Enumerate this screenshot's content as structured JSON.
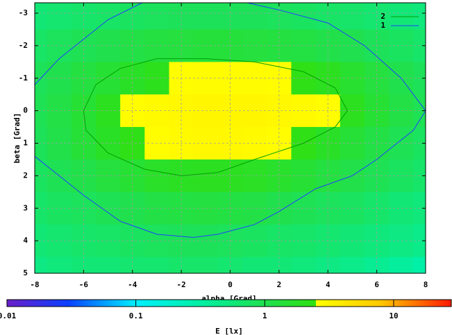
{
  "chart_data": {
    "type": "heatmap",
    "x_label": "alpha [Grad]",
    "y_label": "beta [Grad]",
    "colorbar_label": "E [lx]",
    "xlim": [
      -8,
      8
    ],
    "ylim": [
      -3.32,
      5
    ],
    "y_inverted": true,
    "xticks": [
      -8,
      -6,
      -4,
      -2,
      0,
      2,
      4,
      6,
      8
    ],
    "yticks": [
      -3,
      -2,
      -1,
      0,
      1,
      2,
      3,
      4,
      5
    ],
    "grid": true,
    "x": [
      -8,
      -7,
      -6,
      -5,
      -4,
      -3,
      -2,
      -1,
      0,
      1,
      2,
      3,
      4,
      5,
      6,
      7,
      8
    ],
    "y": [
      -3,
      -2,
      -1,
      0,
      1,
      2,
      3,
      4,
      5
    ],
    "z": [
      [
        0.6,
        0.65,
        0.7,
        0.75,
        0.8,
        0.85,
        0.9,
        0.9,
        0.9,
        0.9,
        0.85,
        0.8,
        0.75,
        0.7,
        0.65,
        0.6,
        0.55
      ],
      [
        0.75,
        0.85,
        0.95,
        1.05,
        1.15,
        1.25,
        1.3,
        1.35,
        1.35,
        1.3,
        1.25,
        1.2,
        1.1,
        1,
        0.9,
        0.8,
        0.7
      ],
      [
        0.9,
        1.05,
        1.25,
        1.5,
        1.8,
        2.1,
        2.6,
        2.7,
        2.7,
        2.7,
        2.6,
        2.3,
        2.0,
        1.6,
        1.3,
        1.05,
        0.9
      ],
      [
        0.95,
        1.15,
        1.5,
        2.0,
        2.6,
        2.8,
        2.9,
        3.0,
        3.0,
        3.0,
        2.9,
        2.8,
        2.6,
        2.0,
        1.5,
        1.15,
        0.95
      ],
      [
        0.9,
        1.1,
        1.4,
        1.8,
        2.3,
        2.6,
        2.8,
        2.9,
        2.9,
        2.8,
        2.6,
        2.3,
        1.8,
        1.4,
        1.15,
        0.95,
        0.8
      ],
      [
        0.8,
        0.95,
        1.1,
        1.3,
        1.5,
        1.75,
        1.9,
        1.95,
        1.95,
        1.85,
        1.65,
        1.45,
        1.25,
        1.1,
        0.95,
        0.8,
        0.7
      ],
      [
        0.7,
        0.8,
        0.85,
        0.95,
        1.05,
        1.15,
        1.2,
        1.25,
        1.2,
        1.15,
        1.05,
        0.95,
        0.85,
        0.8,
        0.7,
        0.6,
        0.55
      ],
      [
        0.6,
        0.65,
        0.7,
        0.75,
        0.8,
        0.85,
        0.9,
        0.9,
        0.85,
        0.8,
        0.75,
        0.7,
        0.65,
        0.6,
        0.55,
        0.5,
        0.45
      ],
      [
        0.5,
        0.55,
        0.6,
        0.6,
        0.65,
        0.65,
        0.7,
        0.7,
        0.65,
        0.6,
        0.6,
        0.55,
        0.5,
        0.45,
        0.4,
        0.35,
        0.3
      ]
    ],
    "colormap": [
      {
        "value": 0.01,
        "color": "#6a1fc8"
      },
      {
        "value": 0.03,
        "color": "#0a40ff"
      },
      {
        "value": 0.1,
        "color": "#00f0ff"
      },
      {
        "value": 0.3,
        "color": "#00f0a8"
      },
      {
        "value": 1,
        "color": "#20e050"
      },
      {
        "value": 2.5,
        "color": "#30e010"
      },
      {
        "value": 2.5,
        "color": "#ffff00"
      },
      {
        "value": 8,
        "color": "#ffc800"
      },
      {
        "value": 28,
        "color": "#ff1a00"
      }
    ],
    "cblim": [
      0.01,
      28
    ],
    "cblog": true,
    "cbticks": [
      0.01,
      0.1,
      1,
      10
    ],
    "legend_position": "upper right",
    "series": [
      {
        "name": "2",
        "color": "#00a000",
        "x": [
          -6,
          -5.5,
          -4.5,
          -3,
          -1,
          1,
          3,
          4.3,
          4.8,
          4.3,
          3,
          1,
          -0.5,
          -2,
          -3.5,
          -5,
          -5.9,
          -6
        ],
        "y": [
          0,
          -0.8,
          -1.3,
          -1.6,
          -1.6,
          -1.5,
          -1.2,
          -0.7,
          0,
          0.5,
          1,
          1.5,
          1.9,
          2,
          1.8,
          1.3,
          0.6,
          0
        ]
      },
      {
        "name": "1",
        "color": "#2040ff",
        "x": [
          -8,
          -7,
          -6,
          -5,
          -3.6,
          null,
          0.7,
          2,
          4,
          5.5,
          7,
          8,
          7.5,
          6,
          5,
          3.5,
          2,
          1,
          -0.5,
          -1.5,
          -3,
          -4.5,
          -6,
          -7,
          -8
        ],
        "y": [
          -0.8,
          -1.6,
          -2.2,
          -2.8,
          -3.32,
          null,
          -3.32,
          -3.1,
          -2.7,
          -2,
          -1,
          0,
          0.6,
          1.5,
          2,
          2.4,
          3.1,
          3.5,
          3.8,
          3.9,
          3.8,
          3.4,
          2.6,
          2,
          1.4
        ]
      }
    ]
  }
}
